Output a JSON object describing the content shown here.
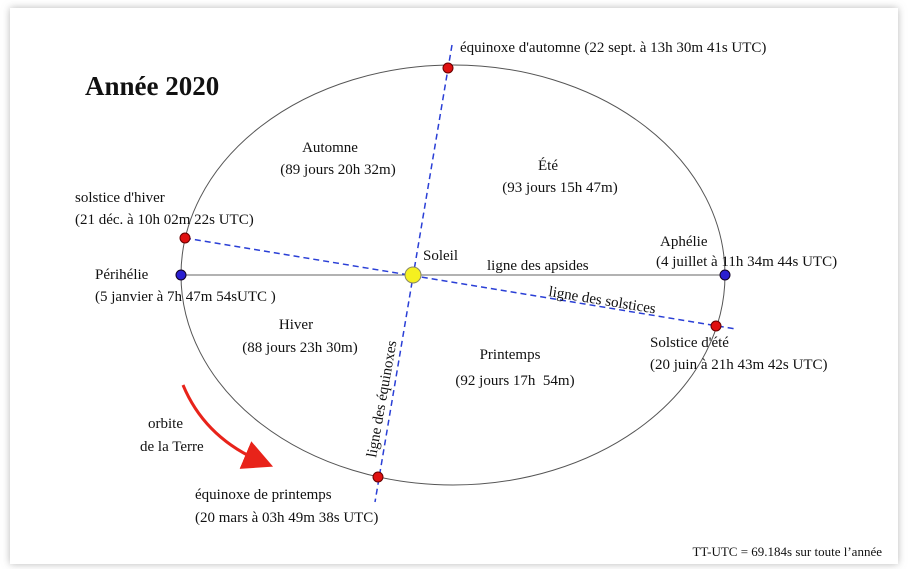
{
  "title": "Année 2020",
  "labels": [
    "équinoxe d'automne (22 sept. à 13h 30m 41s UTC)",
    "Automne",
    "(89 jours 20h 32m)",
    "Été",
    "(93 jours 15h 47m)",
    "solstice d'hiver",
    "(21 déc. à 10h 02m 22s UTC)",
    "Soleil",
    "ligne des apsides",
    "Aphélie",
    "(4 juillet à 11h 34m 44s UTC)",
    "Périhélie",
    "(5 janvier à 7h 47m 54sUTC )",
    "ligne des solstices",
    "Hiver",
    "(88 jours 23h 30m)",
    "Printemps",
    "(92 jours 17h  54m)",
    "Solstice d'été",
    "(20 juin à 21h 43m 42s UTC)",
    "ligne des équinoxes",
    "orbite",
    "de la Terre",
    "équinoxe de printemps",
    "(20 mars à 03h 49m 38s UTC)",
    "TT-UTC = 69.184s sur toute l’année"
  ]
}
